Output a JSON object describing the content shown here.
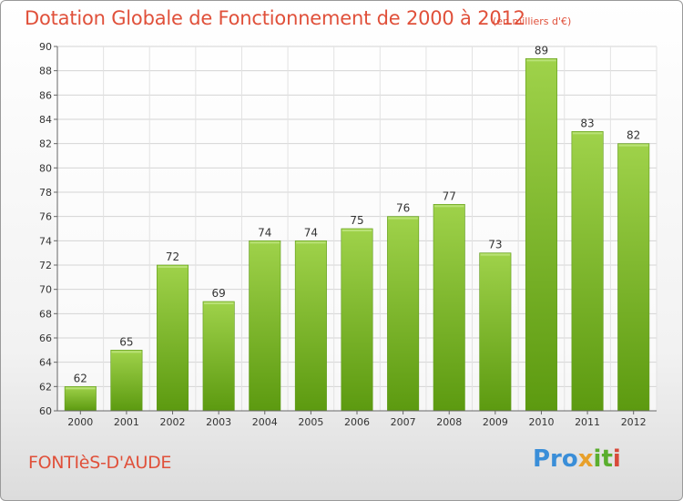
{
  "header": {
    "title": "Dotation Globale de Fonctionnement de 2000 à 2012",
    "subtitle": "(en milliers d'€)"
  },
  "footer": {
    "commune": "FONTIèS-D'AUDE",
    "logo_parts": [
      "Pro",
      "x",
      "it",
      "i"
    ]
  },
  "colors": {
    "title": "#e0503a",
    "bar_top": "#9fd24a",
    "bar_bottom": "#5c9a10",
    "bar_edge": "#5e9a18"
  },
  "chart_data": {
    "type": "bar",
    "title": "Dotation Globale de Fonctionnement de 2000 à 2012",
    "subtitle": "(en milliers d'€)",
    "xlabel": "",
    "ylabel": "",
    "categories": [
      "2000",
      "2001",
      "2002",
      "2003",
      "2004",
      "2005",
      "2006",
      "2007",
      "2008",
      "2009",
      "2010",
      "2011",
      "2012"
    ],
    "values": [
      62,
      65,
      72,
      69,
      74,
      74,
      75,
      76,
      77,
      73,
      89,
      83,
      82
    ],
    "ylim": [
      60,
      90
    ],
    "yticks": [
      60,
      62,
      64,
      66,
      68,
      70,
      72,
      74,
      76,
      78,
      80,
      82,
      84,
      86,
      88,
      90
    ],
    "grid": true,
    "data_labels": true
  }
}
